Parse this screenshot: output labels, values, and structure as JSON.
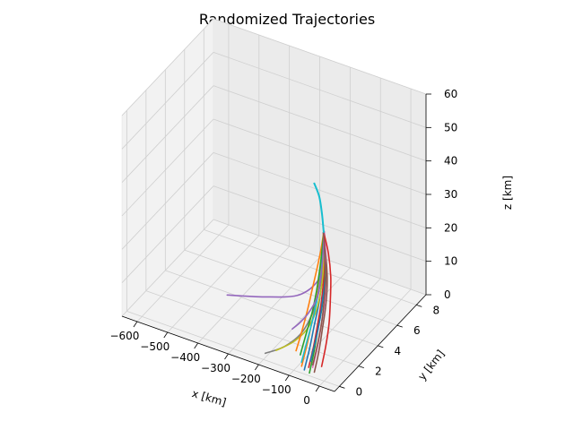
{
  "chart_data": {
    "type": "line",
    "title": "Randomized Trajectories",
    "xlabel": "x [km]",
    "ylabel": "y [km]",
    "zlabel": "z [km]",
    "xlim": [
      -650,
      50
    ],
    "ylim": [
      -0.5,
      9
    ],
    "zlim": [
      0,
      60
    ],
    "x_ticks": [
      -600,
      -500,
      -400,
      -300,
      -200,
      -100,
      0
    ],
    "y_ticks": [
      0,
      2,
      4,
      6,
      8
    ],
    "z_ticks": [
      0,
      10,
      20,
      30,
      40,
      50,
      60
    ],
    "grid": true,
    "colors": [
      "#1f77b4",
      "#ff7f0e",
      "#2ca02c",
      "#d62728",
      "#9467bd",
      "#8c564b",
      "#e377c2",
      "#7f7f7f",
      "#bcbd22",
      "#17becf"
    ],
    "series": [
      {
        "points": [
          [
            -75,
            0.3,
            0
          ],
          [
            -80,
            1.0,
            4
          ],
          [
            -88,
            1.7,
            8
          ],
          [
            -100,
            2.6,
            12
          ],
          [
            -118,
            3.5,
            16
          ],
          [
            -140,
            4.3,
            20
          ],
          [
            -160,
            5.0,
            24
          ]
        ]
      },
      {
        "points": [
          [
            -90,
            0.5,
            0
          ],
          [
            -95,
            1.2,
            4
          ],
          [
            -102,
            1.9,
            8
          ],
          [
            -112,
            2.7,
            12
          ],
          [
            -128,
            3.6,
            16
          ],
          [
            -146,
            4.4,
            20
          ],
          [
            -162,
            5.1,
            24
          ]
        ]
      },
      {
        "points": [
          [
            -55,
            0.2,
            0
          ],
          [
            -62,
            0.9,
            4
          ],
          [
            -72,
            1.6,
            8
          ],
          [
            -86,
            2.5,
            12
          ],
          [
            -108,
            3.4,
            16
          ],
          [
            -136,
            4.3,
            20
          ],
          [
            -160,
            5.0,
            24
          ]
        ]
      },
      {
        "points": [
          [
            -70,
            0.6,
            0
          ],
          [
            -76,
            1.3,
            4
          ],
          [
            -85,
            2.0,
            8
          ],
          [
            -98,
            2.8,
            12
          ],
          [
            -116,
            3.6,
            16
          ],
          [
            -140,
            4.4,
            20
          ],
          [
            -161,
            5.0,
            24
          ]
        ]
      },
      {
        "points": [
          [
            -440,
            3.8,
            0
          ],
          [
            -320,
            3.9,
            3
          ],
          [
            -220,
            4.1,
            6
          ],
          [
            -170,
            4.4,
            10
          ],
          [
            -150,
            4.6,
            15
          ],
          [
            -155,
            4.8,
            20
          ],
          [
            -160,
            5.0,
            24
          ]
        ]
      },
      {
        "points": [
          [
            -45,
            0.4,
            0
          ],
          [
            -52,
            1.1,
            4
          ],
          [
            -63,
            1.8,
            8
          ],
          [
            -80,
            2.7,
            12
          ],
          [
            -104,
            3.6,
            16
          ],
          [
            -134,
            4.4,
            20
          ],
          [
            -160,
            5.0,
            24
          ]
        ]
      },
      {
        "points": [
          [
            -60,
            0.7,
            0
          ],
          [
            -66,
            1.4,
            4
          ],
          [
            -76,
            2.1,
            8
          ],
          [
            -90,
            2.9,
            12
          ],
          [
            -112,
            3.7,
            16
          ],
          [
            -138,
            4.5,
            20
          ],
          [
            -161,
            5.1,
            24
          ]
        ]
      },
      {
        "points": [
          [
            -210,
            0.5,
            0
          ],
          [
            -170,
            1.3,
            1
          ],
          [
            -145,
            2.3,
            3
          ],
          [
            -135,
            3.3,
            8
          ],
          [
            -140,
            4.1,
            14
          ],
          [
            -152,
            4.6,
            20
          ],
          [
            -160,
            5.0,
            24
          ]
        ]
      },
      {
        "points": [
          [
            -190,
            1.0,
            0
          ],
          [
            -160,
            1.8,
            1
          ],
          [
            -140,
            2.6,
            3
          ],
          [
            -132,
            3.4,
            7
          ],
          [
            -138,
            4.2,
            14
          ],
          [
            -152,
            4.7,
            20
          ],
          [
            -160,
            5.0,
            24
          ]
        ]
      },
      {
        "points": [
          [
            -100,
            0.8,
            0
          ],
          [
            -104,
            1.5,
            4
          ],
          [
            -110,
            2.3,
            8
          ],
          [
            -120,
            3.1,
            12
          ],
          [
            -134,
            3.9,
            16
          ],
          [
            -150,
            4.6,
            20
          ],
          [
            -162,
            5.1,
            24
          ]
        ]
      },
      {
        "points": [
          [
            -80,
            1.1,
            0
          ],
          [
            -85,
            1.8,
            4
          ],
          [
            -93,
            2.5,
            8
          ],
          [
            -105,
            3.2,
            12
          ],
          [
            -122,
            4.0,
            16
          ],
          [
            -144,
            4.6,
            20
          ],
          [
            -161,
            5.0,
            24
          ]
        ]
      },
      {
        "points": [
          [
            -140,
            1.5,
            0
          ],
          [
            -142,
            2.2,
            4
          ],
          [
            -146,
            2.9,
            8
          ],
          [
            -150,
            3.5,
            12
          ],
          [
            -154,
            4.1,
            16
          ],
          [
            -157,
            4.6,
            20
          ],
          [
            -160,
            5.0,
            24
          ]
        ]
      },
      {
        "points": [
          [
            -120,
            1.3,
            0
          ],
          [
            -123,
            2.0,
            4
          ],
          [
            -128,
            2.8,
            8
          ],
          [
            -136,
            3.5,
            12
          ],
          [
            -145,
            4.1,
            16
          ],
          [
            -153,
            4.6,
            20
          ],
          [
            -160,
            5.0,
            24
          ]
        ]
      },
      {
        "points": [
          [
            -40,
            1.0,
            0
          ],
          [
            -48,
            1.7,
            4
          ],
          [
            -60,
            2.4,
            8
          ],
          [
            -78,
            3.1,
            12
          ],
          [
            -102,
            3.9,
            16
          ],
          [
            -132,
            4.6,
            20
          ],
          [
            -160,
            5.0,
            24
          ]
        ]
      },
      {
        "points": [
          [
            -200,
            3.0,
            0
          ],
          [
            -180,
            3.3,
            2
          ],
          [
            -160,
            3.6,
            5
          ],
          [
            -145,
            3.9,
            9
          ],
          [
            -145,
            4.3,
            15
          ],
          [
            -152,
            4.7,
            20
          ],
          [
            -160,
            5.0,
            24
          ]
        ]
      },
      {
        "points": [
          [
            -66,
            0.9,
            0
          ],
          [
            -72,
            1.6,
            4
          ],
          [
            -81,
            2.3,
            8
          ],
          [
            -95,
            3.0,
            12
          ],
          [
            -115,
            3.8,
            16
          ],
          [
            -140,
            4.5,
            20
          ],
          [
            -161,
            5.0,
            24
          ]
        ]
      }
    ]
  }
}
